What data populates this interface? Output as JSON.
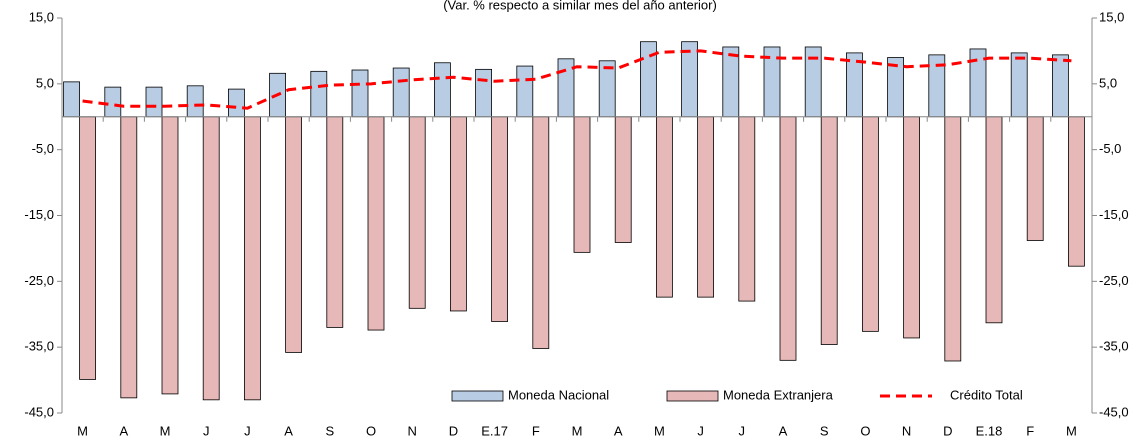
{
  "chart_data": {
    "type": "bar_line",
    "subtitle": "(Var. % respecto a similar mes del año anterior)",
    "categories": [
      "M",
      "A",
      "M",
      "J",
      "J",
      "A",
      "S",
      "O",
      "N",
      "D",
      "E.17",
      "F",
      "M",
      "A",
      "M",
      "J",
      "J",
      "A",
      "S",
      "O",
      "N",
      "D",
      "E.18",
      "F",
      "M"
    ],
    "ylim": [
      -45,
      15
    ],
    "yticks": [
      {
        "value": -45,
        "label": "-45,0"
      },
      {
        "value": -35,
        "label": "-35,0"
      },
      {
        "value": -25,
        "label": "-25,0"
      },
      {
        "value": -15,
        "label": "-15,0"
      },
      {
        "value": -5,
        "label": "-5,0"
      },
      {
        "value": 5,
        "label": "5,0"
      },
      {
        "value": 15,
        "label": "15,0"
      }
    ],
    "legend": "bottom-right",
    "series": [
      {
        "name": "Moneda Nacional",
        "kind": "bar",
        "color": "#b8cce4",
        "values": [
          5.3,
          4.5,
          4.5,
          4.7,
          4.2,
          6.6,
          6.9,
          7.1,
          7.4,
          8.2,
          7.2,
          7.7,
          8.8,
          8.5,
          11.4,
          11.4,
          10.6,
          10.6,
          10.6,
          9.7,
          9.0,
          9.4,
          10.3,
          9.7,
          9.4
        ]
      },
      {
        "name": "Moneda Extranjera",
        "kind": "bar",
        "color": "#e6b8b7",
        "values": [
          -39.9,
          -42.7,
          -42.1,
          -43.0,
          -43.0,
          -35.8,
          -32.0,
          -32.4,
          -29.1,
          -29.5,
          -31.1,
          -35.2,
          -20.6,
          -19.1,
          -27.4,
          -27.4,
          -28.0,
          -37.0,
          -34.6,
          -32.6,
          -33.6,
          -37.1,
          -31.3,
          -18.8,
          -22.7
        ]
      },
      {
        "name": "Crédito Total",
        "kind": "line",
        "color": "#ff0000",
        "values": [
          2.4,
          1.6,
          1.6,
          1.8,
          1.3,
          4.1,
          4.8,
          5.0,
          5.6,
          6.0,
          5.4,
          5.7,
          7.6,
          7.4,
          9.8,
          10.0,
          9.2,
          8.9,
          8.9,
          8.3,
          7.6,
          7.9,
          8.9,
          8.9,
          8.5
        ]
      }
    ]
  }
}
